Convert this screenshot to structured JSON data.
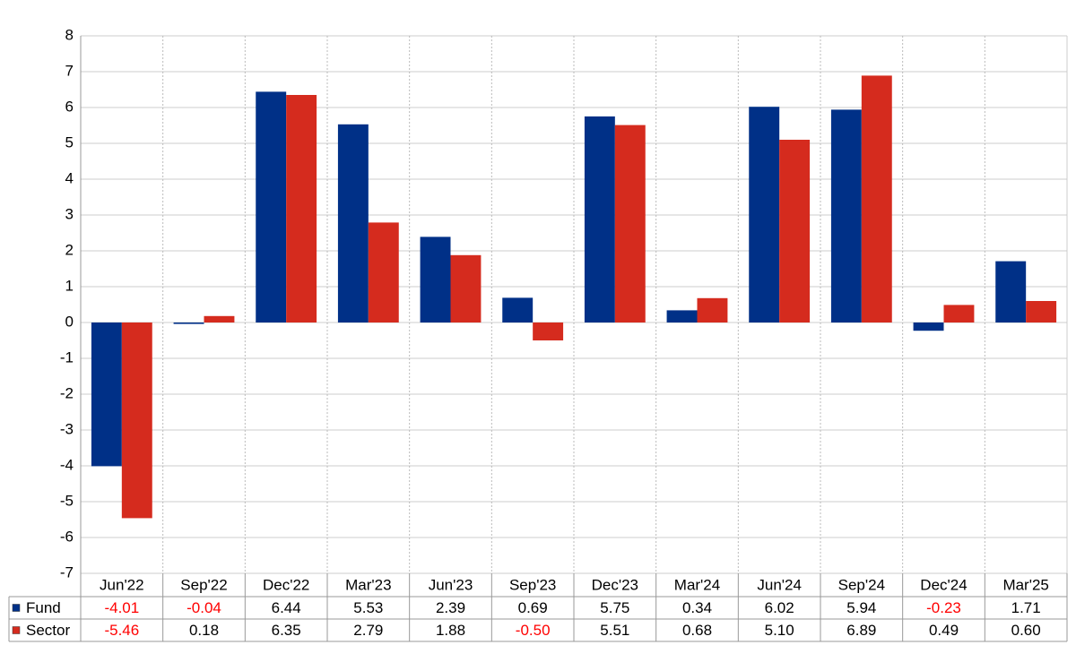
{
  "chart_data": {
    "type": "bar",
    "categories": [
      "Jun'22",
      "Sep'22",
      "Dec'22",
      "Mar'23",
      "Jun'23",
      "Sep'23",
      "Dec'23",
      "Mar'24",
      "Jun'24",
      "Sep'24",
      "Dec'24",
      "Mar'25"
    ],
    "series": [
      {
        "name": "Fund",
        "color": "#003087",
        "values": [
          -4.01,
          -0.04,
          6.44,
          5.53,
          2.39,
          0.69,
          5.75,
          0.34,
          6.02,
          5.94,
          -0.23,
          1.71
        ],
        "value_labels": [
          "-4.01",
          "-0.04",
          "6.44",
          "5.53",
          "2.39",
          "0.69",
          "5.75",
          "0.34",
          "6.02",
          "5.94",
          "-0.23",
          "1.71"
        ]
      },
      {
        "name": "Sector",
        "color": "#d52b1e",
        "values": [
          -5.46,
          0.18,
          6.35,
          2.79,
          1.88,
          -0.5,
          5.51,
          0.68,
          5.1,
          6.89,
          0.49,
          0.6
        ],
        "value_labels": [
          "-5.46",
          "0.18",
          "6.35",
          "2.79",
          "1.88",
          "-0.50",
          "5.51",
          "0.68",
          "5.10",
          "6.89",
          "0.49",
          "0.60"
        ]
      }
    ],
    "ylim": [
      -7,
      8
    ],
    "yticks": [
      -7,
      -6,
      -5,
      -4,
      -3,
      -2,
      -1,
      0,
      1,
      2,
      3,
      4,
      5,
      6,
      7,
      8
    ],
    "grid": true
  }
}
